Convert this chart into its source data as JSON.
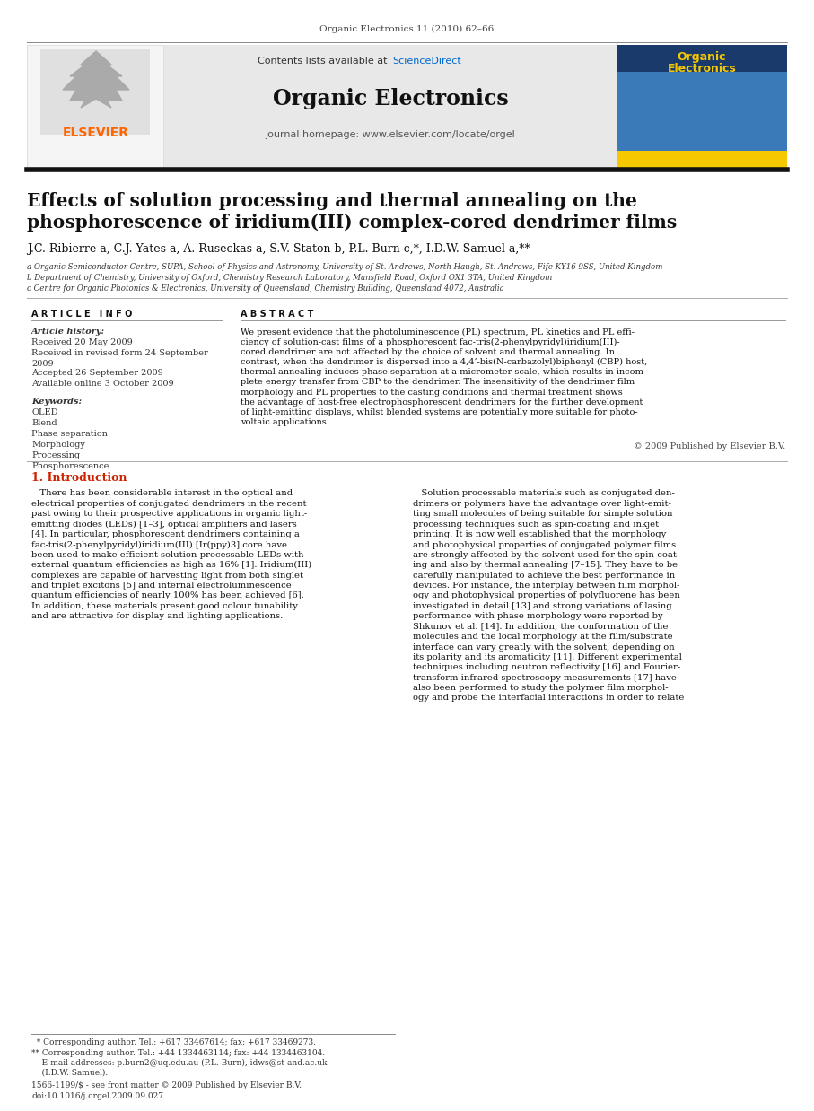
{
  "page_bg": "#ffffff",
  "top_journal_ref": "Organic Electronics 11 (2010) 62–66",
  "header_bg": "#e8e8e8",
  "sciencedirect_color": "#0066cc",
  "journal_name": "Organic Electronics",
  "journal_homepage": "journal homepage: www.elsevier.com/locate/orgel",
  "elsevier_color": "#ff6600",
  "elsevier_text": "ELSEVIER",
  "article_title_line1": "Effects of solution processing and thermal annealing on the",
  "article_title_line2": "phosphorescence of iridium(III) complex-cored dendrimer films",
  "authors": "J.C. Ribierre a, C.J. Yates a, A. Ruseckas a, S.V. Staton b, P.L. Burn c,*, I.D.W. Samuel a,**",
  "affil_a": "a Organic Semiconductor Centre, SUPA, School of Physics and Astronomy, University of St. Andrews, North Haugh, St. Andrews, Fife KY16 9SS, United Kingdom",
  "affil_b": "b Department of Chemistry, University of Oxford, Chemistry Research Laboratory, Mansfield Road, Oxford OX1 3TA, United Kingdom",
  "affil_c": "c Centre for Organic Photonics & Electronics, University of Queensland, Chemistry Building, Queensland 4072, Australia",
  "article_info_title": "A R T I C L E   I N F O",
  "article_history_title": "Article history:",
  "received": "Received 20 May 2009",
  "revised1": "Received in revised form 24 September",
  "revised2": "2009",
  "accepted": "Accepted 26 September 2009",
  "available": "Available online 3 October 2009",
  "keywords_title": "Keywords:",
  "keywords": [
    "OLED",
    "Blend",
    "Phase separation",
    "Morphology",
    "Processing",
    "Phosphorescence"
  ],
  "abstract_title": "A B S T R A C T",
  "abstract_lines": [
    "We present evidence that the photoluminescence (PL) spectrum, PL kinetics and PL effi-",
    "ciency of solution-cast films of a phosphorescent fac-tris(2-phenylpyridyl)iridium(III)-",
    "cored dendrimer are not affected by the choice of solvent and thermal annealing. In",
    "contrast, when the dendrimer is dispersed into a 4,4’-bis(N-carbazolyl)biphenyl (CBP) host,",
    "thermal annealing induces phase separation at a micrometer scale, which results in incom-",
    "plete energy transfer from CBP to the dendrimer. The insensitivity of the dendrimer film",
    "morphology and PL properties to the casting conditions and thermal treatment shows",
    "the advantage of host-free electrophosphorescent dendrimers for the further development",
    "of light-emitting displays, whilst blended systems are potentially more suitable for photo-",
    "voltaic applications."
  ],
  "copyright": "© 2009 Published by Elsevier B.V.",
  "intro_title": "1. Introduction",
  "left_intro": [
    "   There has been considerable interest in the optical and",
    "electrical properties of conjugated dendrimers in the recent",
    "past owing to their prospective applications in organic light-",
    "emitting diodes (LEDs) [1–3], optical amplifiers and lasers",
    "[4]. In particular, phosphorescent dendrimers containing a",
    "fac-tris(2-phenylpyridyl)iridium(III) [Ir(ppy)3] core have",
    "been used to make efficient solution-processable LEDs with",
    "external quantum efficiencies as high as 16% [1]. Iridium(III)",
    "complexes are capable of harvesting light from both singlet",
    "and triplet excitons [5] and internal electroluminescence",
    "quantum efficiencies of nearly 100% has been achieved [6].",
    "In addition, these materials present good colour tunability",
    "and are attractive for display and lighting applications."
  ],
  "right_intro": [
    "   Solution processable materials such as conjugated den-",
    "drimers or polymers have the advantage over light-emit-",
    "ting small molecules of being suitable for simple solution",
    "processing techniques such as spin-coating and inkjet",
    "printing. It is now well established that the morphology",
    "and photophysical properties of conjugated polymer films",
    "are strongly affected by the solvent used for the spin-coat-",
    "ing and also by thermal annealing [7–15]. They have to be",
    "carefully manipulated to achieve the best performance in",
    "devices. For instance, the interplay between film morphol-",
    "ogy and photophysical properties of polyfluorene has been",
    "investigated in detail [13] and strong variations of lasing",
    "performance with phase morphology were reported by",
    "Shkunov et al. [14]. In addition, the conformation of the",
    "molecules and the local morphology at the film/substrate",
    "interface can vary greatly with the solvent, depending on",
    "its polarity and its aromaticity [11]. Different experimental",
    "techniques including neutron reflectivity [16] and Fourier-",
    "transform infrared spectroscopy measurements [17] have",
    "also been performed to study the polymer film morphol-",
    "ogy and probe the interfacial interactions in order to relate"
  ],
  "footnote1": "  * Corresponding author. Tel.: +617 33467614; fax: +617 33469273.",
  "footnote2": "** Corresponding author. Tel.: +44 1334463114; fax: +44 1334463104.",
  "footnote3": "    E-mail addresses: p.burn2@uq.edu.au (P.L. Burn), idws@st-and.ac.uk",
  "footnote4": "    (I.D.W. Samuel).",
  "issn": "1566-1199/$ - see front matter © 2009 Published by Elsevier B.V.",
  "doi": "doi:10.1016/j.orgel.2009.09.027"
}
